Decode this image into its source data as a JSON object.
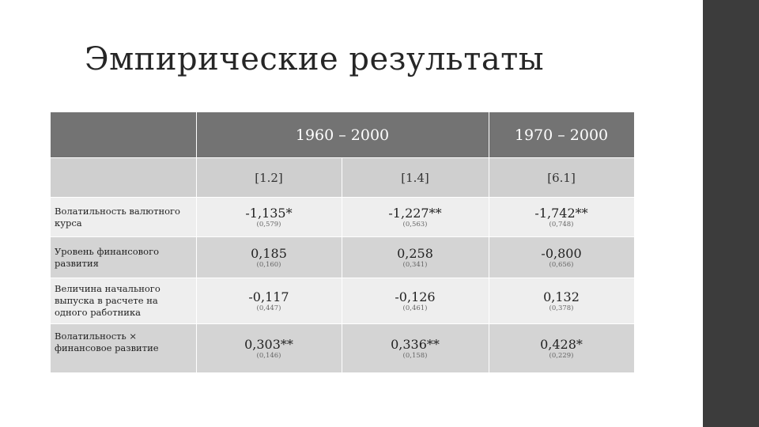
{
  "title": "Эмпирические результаты",
  "table": {
    "periods": [
      "1960 – 2000",
      "1970 – 2000"
    ],
    "columns": [
      "[1.2]",
      "[1.4]",
      "[6.1]"
    ],
    "rows": [
      {
        "label": "Волатильность валютного курса",
        "cells": [
          {
            "coef": "-1,135*",
            "se": "(0,579)"
          },
          {
            "coef": "-1,227**",
            "se": "(0,563)"
          },
          {
            "coef": "-1,742**",
            "se": "(0,748)"
          }
        ]
      },
      {
        "label": "Уровень финансового развития",
        "cells": [
          {
            "coef": "0,185",
            "se": "(0,160)"
          },
          {
            "coef": "0,258",
            "se": "(0,341)"
          },
          {
            "coef": "-0,800",
            "se": "(0,656)"
          }
        ]
      },
      {
        "label": "Величина начального выпуска в расчете на одного работника",
        "cells": [
          {
            "coef": "-0,117",
            "se": "(0,447)"
          },
          {
            "coef": "-0,126",
            "se": "(0,461)"
          },
          {
            "coef": "0,132",
            "se": "(0,378)"
          }
        ]
      },
      {
        "label": "Волатильность × финансовое развитие",
        "cells": [
          {
            "coef": "0,303**",
            "se": "(0,146)"
          },
          {
            "coef": "0,336**",
            "se": "(0,158)"
          },
          {
            "coef": "0,428*",
            "se": "(0,229)"
          }
        ]
      }
    ]
  },
  "colors": {
    "header": "#737373",
    "subheader": "#cfcfcf",
    "row_light": "#eeeeee",
    "row_dark": "#d4d4d4",
    "side_bar": "#3c3c3c"
  }
}
